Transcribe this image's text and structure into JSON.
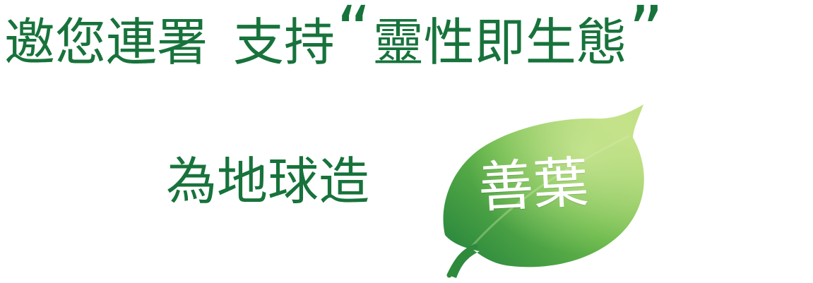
{
  "headline": {
    "part1": "邀您連署",
    "part2": "支持",
    "open_quote": "“",
    "quoted": "靈性即生態",
    "close_quote": "”"
  },
  "secondary": {
    "text": "為地球造"
  },
  "leaf": {
    "text": "善葉",
    "icon": "leaf-icon"
  },
  "colors": {
    "text_green": "#17733b",
    "leaf_light": "#b9dc7b",
    "leaf_mid": "#69b94a",
    "leaf_dark": "#2e8b3e",
    "leaf_text": "#ffffff"
  }
}
